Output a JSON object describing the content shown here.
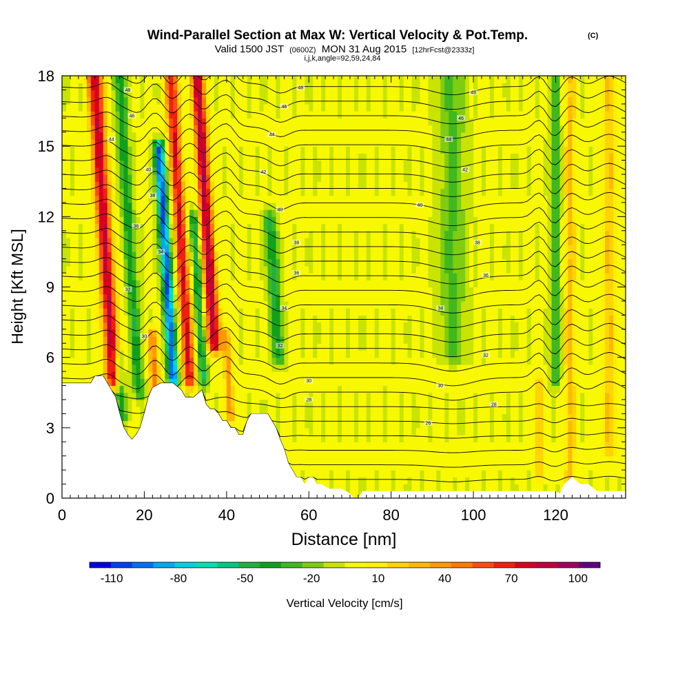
{
  "chart_data": {
    "type": "heatmap",
    "title": "Wind-Parallel Section at Max W: Vertical Velocity & Pot.Temp.",
    "title_mark": "(C)",
    "subtitle_parts": [
      "Valid 1500 JST",
      "(0600Z)",
      "MON 31 Aug 2015",
      "[12hrFcst@2333z]"
    ],
    "subtitle2": "i,j,k,angle=92,59,24,84",
    "xlabel": "Distance [nm]",
    "ylabel": "Height [Kft MSL]",
    "xlim": [
      0,
      137
    ],
    "ylim": [
      0,
      18
    ],
    "x_ticks": [
      0,
      20,
      40,
      60,
      80,
      100,
      120
    ],
    "y_ticks": [
      0,
      3,
      6,
      9,
      12,
      15,
      18
    ],
    "x_minor_step": 2,
    "y_minor_step": 0.6,
    "colorbar": {
      "label": "Vertical Velocity [cm/s]",
      "tick_labels": [
        "-110",
        "-80",
        "-50",
        "-20",
        "10",
        "40",
        "70",
        "100"
      ],
      "tick_values": [
        -110,
        -80,
        -50,
        -20,
        10,
        40,
        70,
        100
      ],
      "levels": [
        -120,
        -110,
        -100,
        -90,
        -80,
        -70,
        -60,
        -50,
        -40,
        -30,
        -20,
        -10,
        0,
        10,
        20,
        30,
        40,
        50,
        60,
        70,
        80,
        90,
        100,
        110
      ],
      "colors": [
        "#0000e0",
        "#0040f0",
        "#0070f4",
        "#00a8f0",
        "#00d0e0",
        "#00e0b0",
        "#00c880",
        "#20b040",
        "#10a020",
        "#40b820",
        "#80cc10",
        "#c8e400",
        "#f8f800",
        "#fff000",
        "#ffd400",
        "#ffb800",
        "#ff9800",
        "#ff7800",
        "#ff4c10",
        "#f02010",
        "#d80020",
        "#c00040",
        "#a00060",
        "#600080"
      ]
    },
    "terrain_kft": [
      [
        0,
        4.9
      ],
      [
        7,
        4.9
      ],
      [
        8,
        5.2
      ],
      [
        10,
        5.2
      ],
      [
        11,
        4.9
      ],
      [
        12,
        4.6
      ],
      [
        13,
        4.3
      ],
      [
        14,
        3.6
      ],
      [
        15,
        3.0
      ],
      [
        16,
        2.7
      ],
      [
        17,
        2.5
      ],
      [
        18,
        2.7
      ],
      [
        19,
        3.0
      ],
      [
        20,
        3.6
      ],
      [
        21,
        4.3
      ],
      [
        22,
        4.7
      ],
      [
        24,
        4.9
      ],
      [
        27,
        4.9
      ],
      [
        29,
        4.6
      ],
      [
        30,
        4.3
      ],
      [
        32,
        4.3
      ],
      [
        34,
        4.6
      ],
      [
        35,
        4.0
      ],
      [
        36,
        3.8
      ],
      [
        37,
        3.8
      ],
      [
        38,
        3.6
      ],
      [
        39,
        3.3
      ],
      [
        40,
        3.3
      ],
      [
        41,
        3.0
      ],
      [
        42,
        3.0
      ],
      [
        43,
        2.7
      ],
      [
        44,
        2.7
      ],
      [
        45,
        3.3
      ],
      [
        46,
        3.6
      ],
      [
        50,
        3.6
      ],
      [
        51,
        3.3
      ],
      [
        52,
        3.0
      ],
      [
        53,
        2.5
      ],
      [
        54,
        2.1
      ],
      [
        55,
        1.5
      ],
      [
        56,
        1.2
      ],
      [
        57,
        0.9
      ],
      [
        58,
        0.9
      ],
      [
        59,
        0.6
      ],
      [
        60,
        0.9
      ],
      [
        61,
        0.9
      ],
      [
        62,
        0.6
      ],
      [
        63,
        0.6
      ],
      [
        65,
        0.4
      ],
      [
        68,
        0.4
      ],
      [
        70,
        0.2
      ],
      [
        71,
        0.0
      ],
      [
        72,
        0.0
      ],
      [
        73,
        0.3
      ],
      [
        120,
        0.3
      ],
      [
        121,
        0.2
      ],
      [
        122,
        0.6
      ],
      [
        124,
        0.9
      ],
      [
        126,
        0.6
      ],
      [
        128,
        0.6
      ],
      [
        130,
        0.3
      ],
      [
        137,
        0.3
      ]
    ],
    "updraft_cores": [
      {
        "x": 12.5,
        "zmin": 5.0,
        "zmax": 18,
        "w": 90,
        "halfwidth": 1.8
      },
      {
        "x": 31.0,
        "zmin": 5.0,
        "zmax": 18,
        "w": 80,
        "halfwidth": 1.5
      },
      {
        "x": 37.5,
        "zmin": 6.5,
        "zmax": 18,
        "w": 95,
        "halfwidth": 1.6
      },
      {
        "x": 22.5,
        "zmin": 3.0,
        "zmax": 7.0,
        "w": 50,
        "halfwidth": 1.2
      },
      {
        "x": 40.5,
        "zmin": 3.5,
        "zmax": 7.0,
        "w": 45,
        "halfwidth": 1.0
      },
      {
        "x": 123.5,
        "zmin": 0.3,
        "zmax": 18,
        "w": 30,
        "halfwidth": 1.3
      },
      {
        "x": 133.0,
        "zmin": 2.0,
        "zmax": 18,
        "w": 28,
        "halfwidth": 1.8
      },
      {
        "x": 116.0,
        "zmin": 1.0,
        "zmax": 5.0,
        "w": 30,
        "halfwidth": 1.0
      }
    ],
    "downdraft_cores": [
      {
        "x": 27.0,
        "zmin": 5.0,
        "zmax": 15,
        "w": -105,
        "halfwidth": 1.2
      },
      {
        "x": 18.5,
        "zmin": 4.5,
        "zmax": 18,
        "w": -40,
        "halfwidth": 1.4
      },
      {
        "x": 34.5,
        "zmin": 5.0,
        "zmax": 12,
        "w": -55,
        "halfwidth": 1.0
      },
      {
        "x": 53.0,
        "zmin": 6.0,
        "zmax": 12,
        "w": -45,
        "halfwidth": 1.4
      },
      {
        "x": 95.0,
        "zmin": 6.0,
        "zmax": 18,
        "w": -25,
        "halfwidth": 3.0
      },
      {
        "x": 120.0,
        "zmin": 5.0,
        "zmax": 18,
        "w": -35,
        "halfwidth": 1.1
      },
      {
        "x": 14.0,
        "zmin": 3.5,
        "zmax": 6.0,
        "w": -40,
        "halfwidth": 1.2
      }
    ],
    "theta_contour_labels": [
      {
        "x": 16,
        "z": 17.4,
        "text": "48"
      },
      {
        "x": 17,
        "z": 16.3,
        "text": "46"
      },
      {
        "x": 12,
        "z": 15.3,
        "text": "44"
      },
      {
        "x": 21,
        "z": 14.0,
        "text": "40"
      },
      {
        "x": 22,
        "z": 12.9,
        "text": "38"
      },
      {
        "x": 18,
        "z": 11.6,
        "text": "36"
      },
      {
        "x": 24,
        "z": 10.5,
        "text": "34"
      },
      {
        "x": 16,
        "z": 8.9,
        "text": "32"
      },
      {
        "x": 20,
        "z": 6.9,
        "text": "30"
      },
      {
        "x": 58,
        "z": 17.5,
        "text": "48"
      },
      {
        "x": 54,
        "z": 16.7,
        "text": "46"
      },
      {
        "x": 51,
        "z": 15.5,
        "text": "44"
      },
      {
        "x": 49,
        "z": 13.9,
        "text": "42"
      },
      {
        "x": 53,
        "z": 12.3,
        "text": "40"
      },
      {
        "x": 57,
        "z": 10.9,
        "text": "38"
      },
      {
        "x": 57,
        "z": 9.6,
        "text": "36"
      },
      {
        "x": 54,
        "z": 8.1,
        "text": "34"
      },
      {
        "x": 53,
        "z": 6.5,
        "text": "32"
      },
      {
        "x": 60,
        "z": 5.0,
        "text": "30"
      },
      {
        "x": 60,
        "z": 4.2,
        "text": "28"
      },
      {
        "x": 89,
        "z": 3.2,
        "text": "26"
      },
      {
        "x": 100,
        "z": 17.3,
        "text": "48"
      },
      {
        "x": 97,
        "z": 16.2,
        "text": "46"
      },
      {
        "x": 94,
        "z": 15.3,
        "text": "44"
      },
      {
        "x": 98,
        "z": 14.0,
        "text": "42"
      },
      {
        "x": 87,
        "z": 12.5,
        "text": "40"
      },
      {
        "x": 101,
        "z": 10.9,
        "text": "38"
      },
      {
        "x": 103,
        "z": 9.5,
        "text": "36"
      },
      {
        "x": 92,
        "z": 8.1,
        "text": "34"
      },
      {
        "x": 103,
        "z": 6.1,
        "text": "32"
      },
      {
        "x": 92,
        "z": 4.8,
        "text": "30"
      },
      {
        "x": 105,
        "z": 4.0,
        "text": "28"
      }
    ]
  }
}
